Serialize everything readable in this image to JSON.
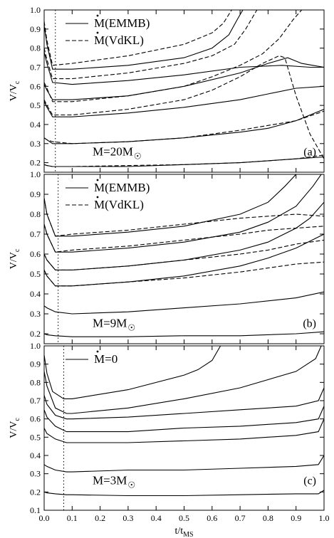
{
  "chart_data": [
    {
      "type": "line",
      "panel_label": "(a)",
      "annotation": "M=20M",
      "annotation_symbol": "☉",
      "ylabel": "V/V",
      "ylabel_sub": "c",
      "xlim": [
        0.0,
        1.0
      ],
      "ylim": [
        0.15,
        1.0
      ],
      "y_ticks": [
        "0.2",
        "0.3",
        "0.4",
        "0.5",
        "0.6",
        "0.7",
        "0.8",
        "0.9",
        "1.0"
      ],
      "vline_x": 0.04,
      "legend": [
        {
          "name": "M(EMMB)",
          "style": "solid"
        },
        {
          "name": "M(VdKL)",
          "style": "dashed"
        }
      ],
      "series": [
        {
          "name": "M(EMMB)",
          "style": "solid",
          "x": [
            0.0,
            0.01,
            0.03,
            0.1,
            0.3,
            0.5,
            0.6,
            0.66,
            0.69,
            0.71
          ],
          "y": [
            0.92,
            0.82,
            0.69,
            0.69,
            0.71,
            0.75,
            0.8,
            0.87,
            0.95,
            1.0
          ]
        },
        {
          "name": "M(EMMB)",
          "style": "solid",
          "x": [
            0.0,
            0.01,
            0.03,
            0.1,
            0.3,
            0.5,
            0.7,
            0.85,
            0.95,
            1.0
          ],
          "y": [
            0.78,
            0.72,
            0.62,
            0.61,
            0.63,
            0.66,
            0.7,
            0.71,
            0.7,
            0.7
          ]
        },
        {
          "name": "M(EMMB)",
          "style": "solid",
          "x": [
            0.0,
            0.01,
            0.03,
            0.1,
            0.3,
            0.5,
            0.7,
            0.8,
            0.87,
            0.92,
            0.96,
            1.0
          ],
          "y": [
            0.61,
            0.58,
            0.53,
            0.53,
            0.55,
            0.6,
            0.67,
            0.72,
            0.75,
            0.72,
            0.71,
            0.7
          ]
        },
        {
          "name": "M(EMMB)",
          "style": "solid",
          "x": [
            0.0,
            0.01,
            0.03,
            0.1,
            0.3,
            0.5,
            0.7,
            0.8,
            0.9,
            1.0
          ],
          "y": [
            0.52,
            0.49,
            0.44,
            0.44,
            0.46,
            0.49,
            0.53,
            0.56,
            0.59,
            0.6
          ]
        },
        {
          "name": "M(EMMB)",
          "style": "solid",
          "x": [
            0.0,
            0.01,
            0.03,
            0.1,
            0.3,
            0.5,
            0.7,
            0.8,
            0.9,
            1.0
          ],
          "y": [
            0.33,
            0.32,
            0.3,
            0.3,
            0.31,
            0.33,
            0.36,
            0.38,
            0.42,
            0.48
          ]
        },
        {
          "name": "M(EMMB)",
          "style": "solid",
          "x": [
            0.0,
            0.01,
            0.03,
            0.1,
            0.3,
            0.5,
            0.7,
            0.9,
            1.0
          ],
          "y": [
            0.19,
            0.185,
            0.18,
            0.18,
            0.18,
            0.19,
            0.2,
            0.22,
            0.23
          ]
        },
        {
          "name": "M(VdKL)",
          "style": "dashed",
          "x": [
            0.0,
            0.01,
            0.03,
            0.1,
            0.3,
            0.5,
            0.6,
            0.64,
            0.67
          ],
          "y": [
            0.94,
            0.84,
            0.71,
            0.72,
            0.76,
            0.82,
            0.88,
            0.93,
            1.0
          ]
        },
        {
          "name": "M(VdKL)",
          "style": "dashed",
          "x": [
            0.0,
            0.01,
            0.03,
            0.1,
            0.3,
            0.5,
            0.6,
            0.68,
            0.72,
            0.76
          ],
          "y": [
            0.8,
            0.74,
            0.64,
            0.64,
            0.67,
            0.72,
            0.76,
            0.82,
            0.9,
            1.0
          ]
        },
        {
          "name": "M(VdKL)",
          "style": "dashed",
          "x": [
            0.0,
            0.01,
            0.03,
            0.1,
            0.3,
            0.5,
            0.6,
            0.7,
            0.78,
            0.84,
            0.89,
            0.92
          ],
          "y": [
            0.62,
            0.59,
            0.52,
            0.52,
            0.55,
            0.6,
            0.65,
            0.71,
            0.77,
            0.85,
            0.95,
            1.0
          ]
        },
        {
          "name": "M(VdKL)",
          "style": "dashed",
          "x": [
            0.0,
            0.01,
            0.03,
            0.1,
            0.3,
            0.5,
            0.6,
            0.7,
            0.78,
            0.84,
            0.86,
            0.9,
            0.95,
            1.0
          ],
          "y": [
            0.53,
            0.5,
            0.45,
            0.45,
            0.48,
            0.53,
            0.58,
            0.65,
            0.72,
            0.76,
            0.75,
            0.55,
            0.35,
            0.22
          ]
        },
        {
          "name": "M(VdKL)",
          "style": "dashed",
          "x": [
            0.0,
            0.01,
            0.03,
            0.1,
            0.3,
            0.5,
            0.7,
            0.9,
            1.0
          ],
          "y": [
            0.33,
            0.32,
            0.31,
            0.3,
            0.31,
            0.33,
            0.37,
            0.42,
            0.47
          ]
        },
        {
          "name": "M(VdKL)",
          "style": "dashed",
          "x": [
            0.0,
            0.01,
            0.03,
            0.1,
            0.3,
            0.5,
            0.7,
            0.9,
            1.0
          ],
          "y": [
            0.19,
            0.185,
            0.18,
            0.18,
            0.185,
            0.19,
            0.2,
            0.22,
            0.24
          ]
        }
      ]
    },
    {
      "type": "line",
      "panel_label": "(b)",
      "annotation": "M=9M",
      "annotation_symbol": "☉",
      "ylabel": "V/V",
      "ylabel_sub": "c",
      "xlim": [
        0.0,
        1.0
      ],
      "ylim": [
        0.15,
        1.0
      ],
      "y_ticks": [
        "0.2",
        "0.3",
        "0.4",
        "0.5",
        "0.6",
        "0.7",
        "0.8",
        "0.9",
        "1.0"
      ],
      "vline_x": 0.05,
      "legend": [
        {
          "name": "M(EMMB)",
          "style": "solid"
        },
        {
          "name": "M(VdKL)",
          "style": "dashed"
        }
      ],
      "series": [
        {
          "name": "M(EMMB)",
          "style": "solid",
          "x": [
            0.0,
            0.01,
            0.04,
            0.1,
            0.3,
            0.5,
            0.7,
            0.8,
            0.86,
            0.9
          ],
          "y": [
            0.88,
            0.8,
            0.69,
            0.69,
            0.71,
            0.74,
            0.8,
            0.86,
            0.94,
            1.0
          ]
        },
        {
          "name": "M(EMMB)",
          "style": "solid",
          "x": [
            0.0,
            0.01,
            0.04,
            0.1,
            0.3,
            0.5,
            0.7,
            0.8,
            0.9,
            0.96,
            0.99
          ],
          "y": [
            0.75,
            0.7,
            0.61,
            0.61,
            0.63,
            0.66,
            0.71,
            0.76,
            0.84,
            0.94,
            1.0
          ]
        },
        {
          "name": "M(EMMB)",
          "style": "solid",
          "x": [
            0.0,
            0.01,
            0.04,
            0.1,
            0.3,
            0.5,
            0.7,
            0.8,
            0.9,
            0.95,
            1.0
          ],
          "y": [
            0.6,
            0.57,
            0.52,
            0.52,
            0.54,
            0.57,
            0.62,
            0.66,
            0.73,
            0.78,
            0.86
          ]
        },
        {
          "name": "M(EMMB)",
          "style": "solid",
          "x": [
            0.0,
            0.01,
            0.04,
            0.1,
            0.3,
            0.5,
            0.7,
            0.8,
            0.9,
            1.0
          ],
          "y": [
            0.52,
            0.49,
            0.44,
            0.44,
            0.46,
            0.49,
            0.54,
            0.58,
            0.63,
            0.7
          ]
        },
        {
          "name": "M(EMMB)",
          "style": "solid",
          "x": [
            0.0,
            0.01,
            0.04,
            0.1,
            0.3,
            0.5,
            0.7,
            0.9,
            1.0
          ],
          "y": [
            0.34,
            0.33,
            0.31,
            0.3,
            0.31,
            0.33,
            0.35,
            0.38,
            0.41
          ]
        },
        {
          "name": "M(EMMB)",
          "style": "solid",
          "x": [
            0.0,
            0.01,
            0.04,
            0.1,
            0.3,
            0.5,
            0.7,
            0.9,
            1.0
          ],
          "y": [
            0.2,
            0.195,
            0.19,
            0.185,
            0.185,
            0.19,
            0.19,
            0.2,
            0.21
          ]
        },
        {
          "name": "M(VdKL)",
          "style": "dashed",
          "x": [
            0.0,
            0.01,
            0.04,
            0.1,
            0.3,
            0.5,
            0.7,
            0.8,
            0.9,
            1.0
          ],
          "y": [
            0.88,
            0.8,
            0.69,
            0.7,
            0.72,
            0.75,
            0.78,
            0.79,
            0.8,
            0.79
          ]
        },
        {
          "name": "M(VdKL)",
          "style": "dashed",
          "x": [
            0.0,
            0.01,
            0.04,
            0.1,
            0.3,
            0.5,
            0.7,
            0.8,
            0.9,
            1.0
          ],
          "y": [
            0.75,
            0.7,
            0.61,
            0.62,
            0.64,
            0.67,
            0.7,
            0.72,
            0.73,
            0.74
          ]
        },
        {
          "name": "M(VdKL)",
          "style": "dashed",
          "x": [
            0.0,
            0.01,
            0.04,
            0.1,
            0.3,
            0.5,
            0.7,
            0.8,
            0.9,
            1.0
          ],
          "y": [
            0.6,
            0.57,
            0.52,
            0.52,
            0.54,
            0.57,
            0.6,
            0.62,
            0.65,
            0.67
          ]
        },
        {
          "name": "M(VdKL)",
          "style": "dashed",
          "x": [
            0.0,
            0.01,
            0.04,
            0.1,
            0.3,
            0.5,
            0.7,
            0.8,
            0.9,
            1.0
          ],
          "y": [
            0.52,
            0.49,
            0.44,
            0.44,
            0.46,
            0.48,
            0.51,
            0.53,
            0.55,
            0.56
          ]
        }
      ]
    },
    {
      "type": "line",
      "panel_label": "(c)",
      "annotation": "M=3M",
      "annotation_symbol": "☉",
      "ylabel": "V/V",
      "ylabel_sub": "c",
      "xlabel": "t/t",
      "xlabel_sub": "MS",
      "xlim": [
        0.0,
        1.0
      ],
      "ylim": [
        0.1,
        1.0
      ],
      "x_ticks": [
        "0.0",
        "0.1",
        "0.2",
        "0.3",
        "0.4",
        "0.5",
        "0.6",
        "0.7",
        "0.8",
        "0.9",
        "1.0"
      ],
      "y_ticks": [
        "0.1",
        "0.2",
        "0.3",
        "0.4",
        "0.5",
        "0.6",
        "0.7",
        "0.8",
        "0.9",
        "1.0"
      ],
      "vline_x": 0.07,
      "legend": [
        {
          "name": "M=0",
          "style": "solid"
        }
      ],
      "series": [
        {
          "name": "M=0",
          "style": "solid",
          "x": [
            0.0,
            0.01,
            0.03,
            0.07,
            0.1,
            0.3,
            0.5,
            0.55,
            0.6,
            0.63
          ],
          "y": [
            0.95,
            0.85,
            0.75,
            0.71,
            0.71,
            0.76,
            0.84,
            0.87,
            0.92,
            1.0
          ]
        },
        {
          "name": "M=0",
          "style": "solid",
          "x": [
            0.0,
            0.01,
            0.04,
            0.08,
            0.1,
            0.3,
            0.5,
            0.7,
            0.9,
            0.97,
            0.99
          ],
          "y": [
            0.86,
            0.78,
            0.66,
            0.63,
            0.63,
            0.66,
            0.71,
            0.77,
            0.86,
            0.93,
            1.0
          ]
        },
        {
          "name": "M=0",
          "style": "solid",
          "x": [
            0.0,
            0.01,
            0.04,
            0.08,
            0.1,
            0.3,
            0.5,
            0.7,
            0.9,
            0.98,
            1.0
          ],
          "y": [
            0.73,
            0.68,
            0.62,
            0.6,
            0.6,
            0.61,
            0.63,
            0.65,
            0.67,
            0.7,
            0.77
          ]
        },
        {
          "name": "M=0",
          "style": "solid",
          "x": [
            0.0,
            0.01,
            0.04,
            0.08,
            0.1,
            0.3,
            0.5,
            0.7,
            0.9,
            0.98,
            1.0
          ],
          "y": [
            0.65,
            0.61,
            0.56,
            0.53,
            0.53,
            0.53,
            0.55,
            0.56,
            0.58,
            0.6,
            0.67
          ]
        },
        {
          "name": "M=0",
          "style": "solid",
          "x": [
            0.0,
            0.01,
            0.04,
            0.08,
            0.1,
            0.3,
            0.5,
            0.7,
            0.9,
            0.98,
            1.0
          ],
          "y": [
            0.55,
            0.52,
            0.49,
            0.47,
            0.47,
            0.47,
            0.48,
            0.49,
            0.51,
            0.53,
            0.6
          ]
        },
        {
          "name": "M=0",
          "style": "solid",
          "x": [
            0.0,
            0.01,
            0.04,
            0.08,
            0.1,
            0.3,
            0.5,
            0.7,
            0.9,
            0.98,
            1.0
          ],
          "y": [
            0.35,
            0.34,
            0.32,
            0.31,
            0.31,
            0.32,
            0.32,
            0.33,
            0.34,
            0.35,
            0.4
          ]
        },
        {
          "name": "M=0",
          "style": "solid",
          "x": [
            0.0,
            0.01,
            0.04,
            0.08,
            0.1,
            0.3,
            0.5,
            0.7,
            0.9,
            0.98,
            1.0
          ],
          "y": [
            0.2,
            0.195,
            0.19,
            0.185,
            0.185,
            0.18,
            0.18,
            0.185,
            0.19,
            0.19,
            0.21
          ]
        }
      ]
    }
  ]
}
